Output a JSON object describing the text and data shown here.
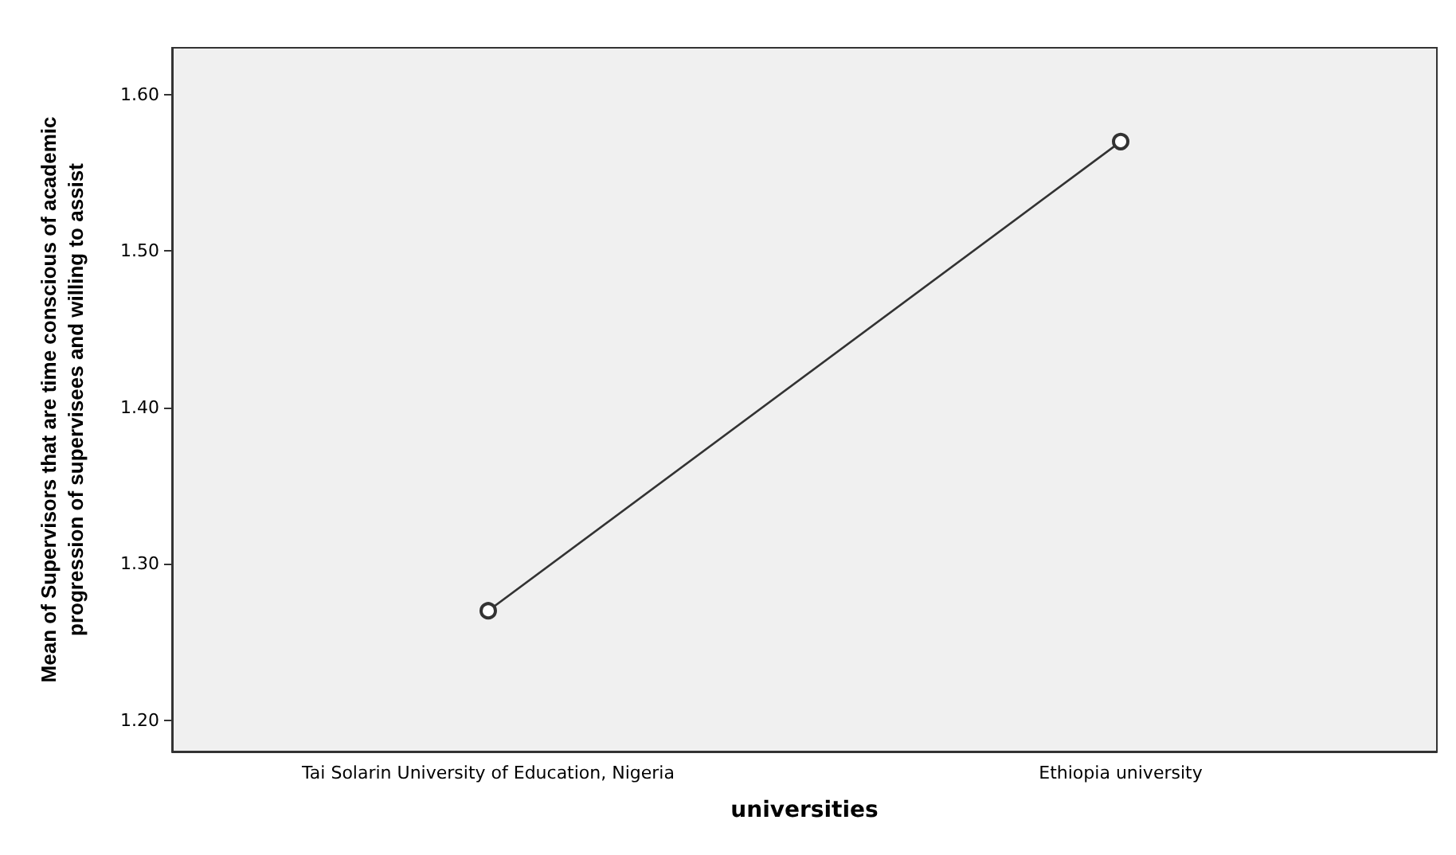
{
  "chart_data": {
    "type": "line",
    "xlabel": "universities",
    "ylabel": "Mean of Supervisors that are time conscious of academic\nprogression of supervisees and willing to assist",
    "categories": [
      "Tai Solarin University of Education, Nigeria",
      "Ethiopia university"
    ],
    "series": [
      {
        "color": "#333333",
        "values": [
          1.27,
          1.57
        ]
      }
    ],
    "ylim": [
      1.18,
      1.63
    ],
    "yticks": [
      {
        "value": 1.2,
        "label": "1.20"
      },
      {
        "value": 1.3,
        "label": "1.30"
      },
      {
        "value": 1.4,
        "label": "1.40"
      },
      {
        "value": 1.5,
        "label": "1.50"
      },
      {
        "value": 1.6,
        "label": "1.60"
      }
    ],
    "grid": false,
    "marker": "circle",
    "line_style": "solid"
  }
}
